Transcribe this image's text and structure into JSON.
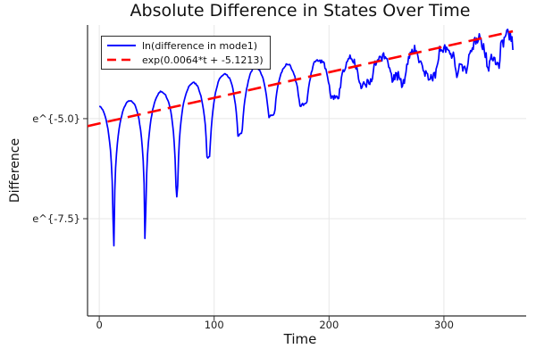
{
  "figure": {
    "background": "#ffffff"
  },
  "chart_data": {
    "type": "line",
    "title": "Absolute Difference in States Over Time",
    "xlabel": "Time",
    "ylabel": "Difference",
    "y_scale": "ln",
    "grid": true,
    "legend_position": "top-left",
    "x_ticks": [
      0,
      100,
      200,
      300
    ],
    "y_ticks": [
      {
        "label": "e^{-5.0}",
        "ln": -5.0
      },
      {
        "label": "e^{-7.5}",
        "ln": -7.5
      }
    ],
    "x_range": [
      -10.2,
      371.6
    ],
    "ln_range": [
      -9.93,
      -2.66
    ],
    "colors": {
      "grid": "#e7e7e7",
      "axis": "#2d2d2d",
      "tick_text": "#1f1f1f"
    },
    "series": [
      {
        "name": "ln(difference in mode1)",
        "color": "#0000ff",
        "style": "solid",
        "width": 1.7,
        "model": {
          "type": "log-abs-oscillation",
          "t_start": 0,
          "t_end": 360,
          "step": 0.75,
          "dip_t0": 12.5,
          "period": 27.5,
          "envelope_ln": [
            [
              0,
              -4.66
            ],
            [
              26,
              -4.55
            ],
            [
              54,
              -4.31
            ],
            [
              81,
              -4.08
            ],
            [
              109,
              -3.86
            ],
            [
              136,
              -3.71
            ],
            [
              164,
              -3.62
            ],
            [
              190,
              -3.5
            ],
            [
              219,
              -3.42
            ],
            [
              250,
              -3.31
            ],
            [
              275,
              -3.22
            ],
            [
              308,
              -3.04
            ],
            [
              336,
              -2.93
            ],
            [
              347,
              -2.88
            ],
            [
              360,
              -2.97
            ]
          ],
          "dip_floor_ln": [
            [
              0,
              -9.5
            ],
            [
              12.5,
              -9.46
            ],
            [
              40,
              -9.82
            ],
            [
              67.5,
              -6.94
            ],
            [
              95,
              -5.94
            ],
            [
              122.5,
              -5.38
            ],
            [
              150,
              -4.89
            ],
            [
              177.5,
              -4.6
            ],
            [
              205,
              -4.37
            ],
            [
              232.5,
              -4.05
            ],
            [
              260,
              -3.88
            ],
            [
              287.5,
              -3.82
            ],
            [
              315,
              -3.66
            ],
            [
              342.5,
              -3.48
            ],
            [
              360,
              -3.45
            ]
          ],
          "noise_amp": [
            [
              0,
              0.02
            ],
            [
              140,
              0.03
            ],
            [
              175,
              0.06
            ],
            [
              200,
              0.12
            ],
            [
              235,
              0.17
            ],
            [
              270,
              0.2
            ],
            [
              310,
              0.22
            ],
            [
              360,
              0.24
            ]
          ]
        }
      },
      {
        "name": "exp(0.0064*t + -5.1213)",
        "color": "#ff0000",
        "style": "dashed",
        "width": 2.6,
        "dash": "15 8",
        "model": {
          "type": "exp-fit",
          "slope": 0.0064,
          "intercept": -5.1213,
          "t_start": -10.2,
          "t_end": 360
        }
      }
    ]
  }
}
